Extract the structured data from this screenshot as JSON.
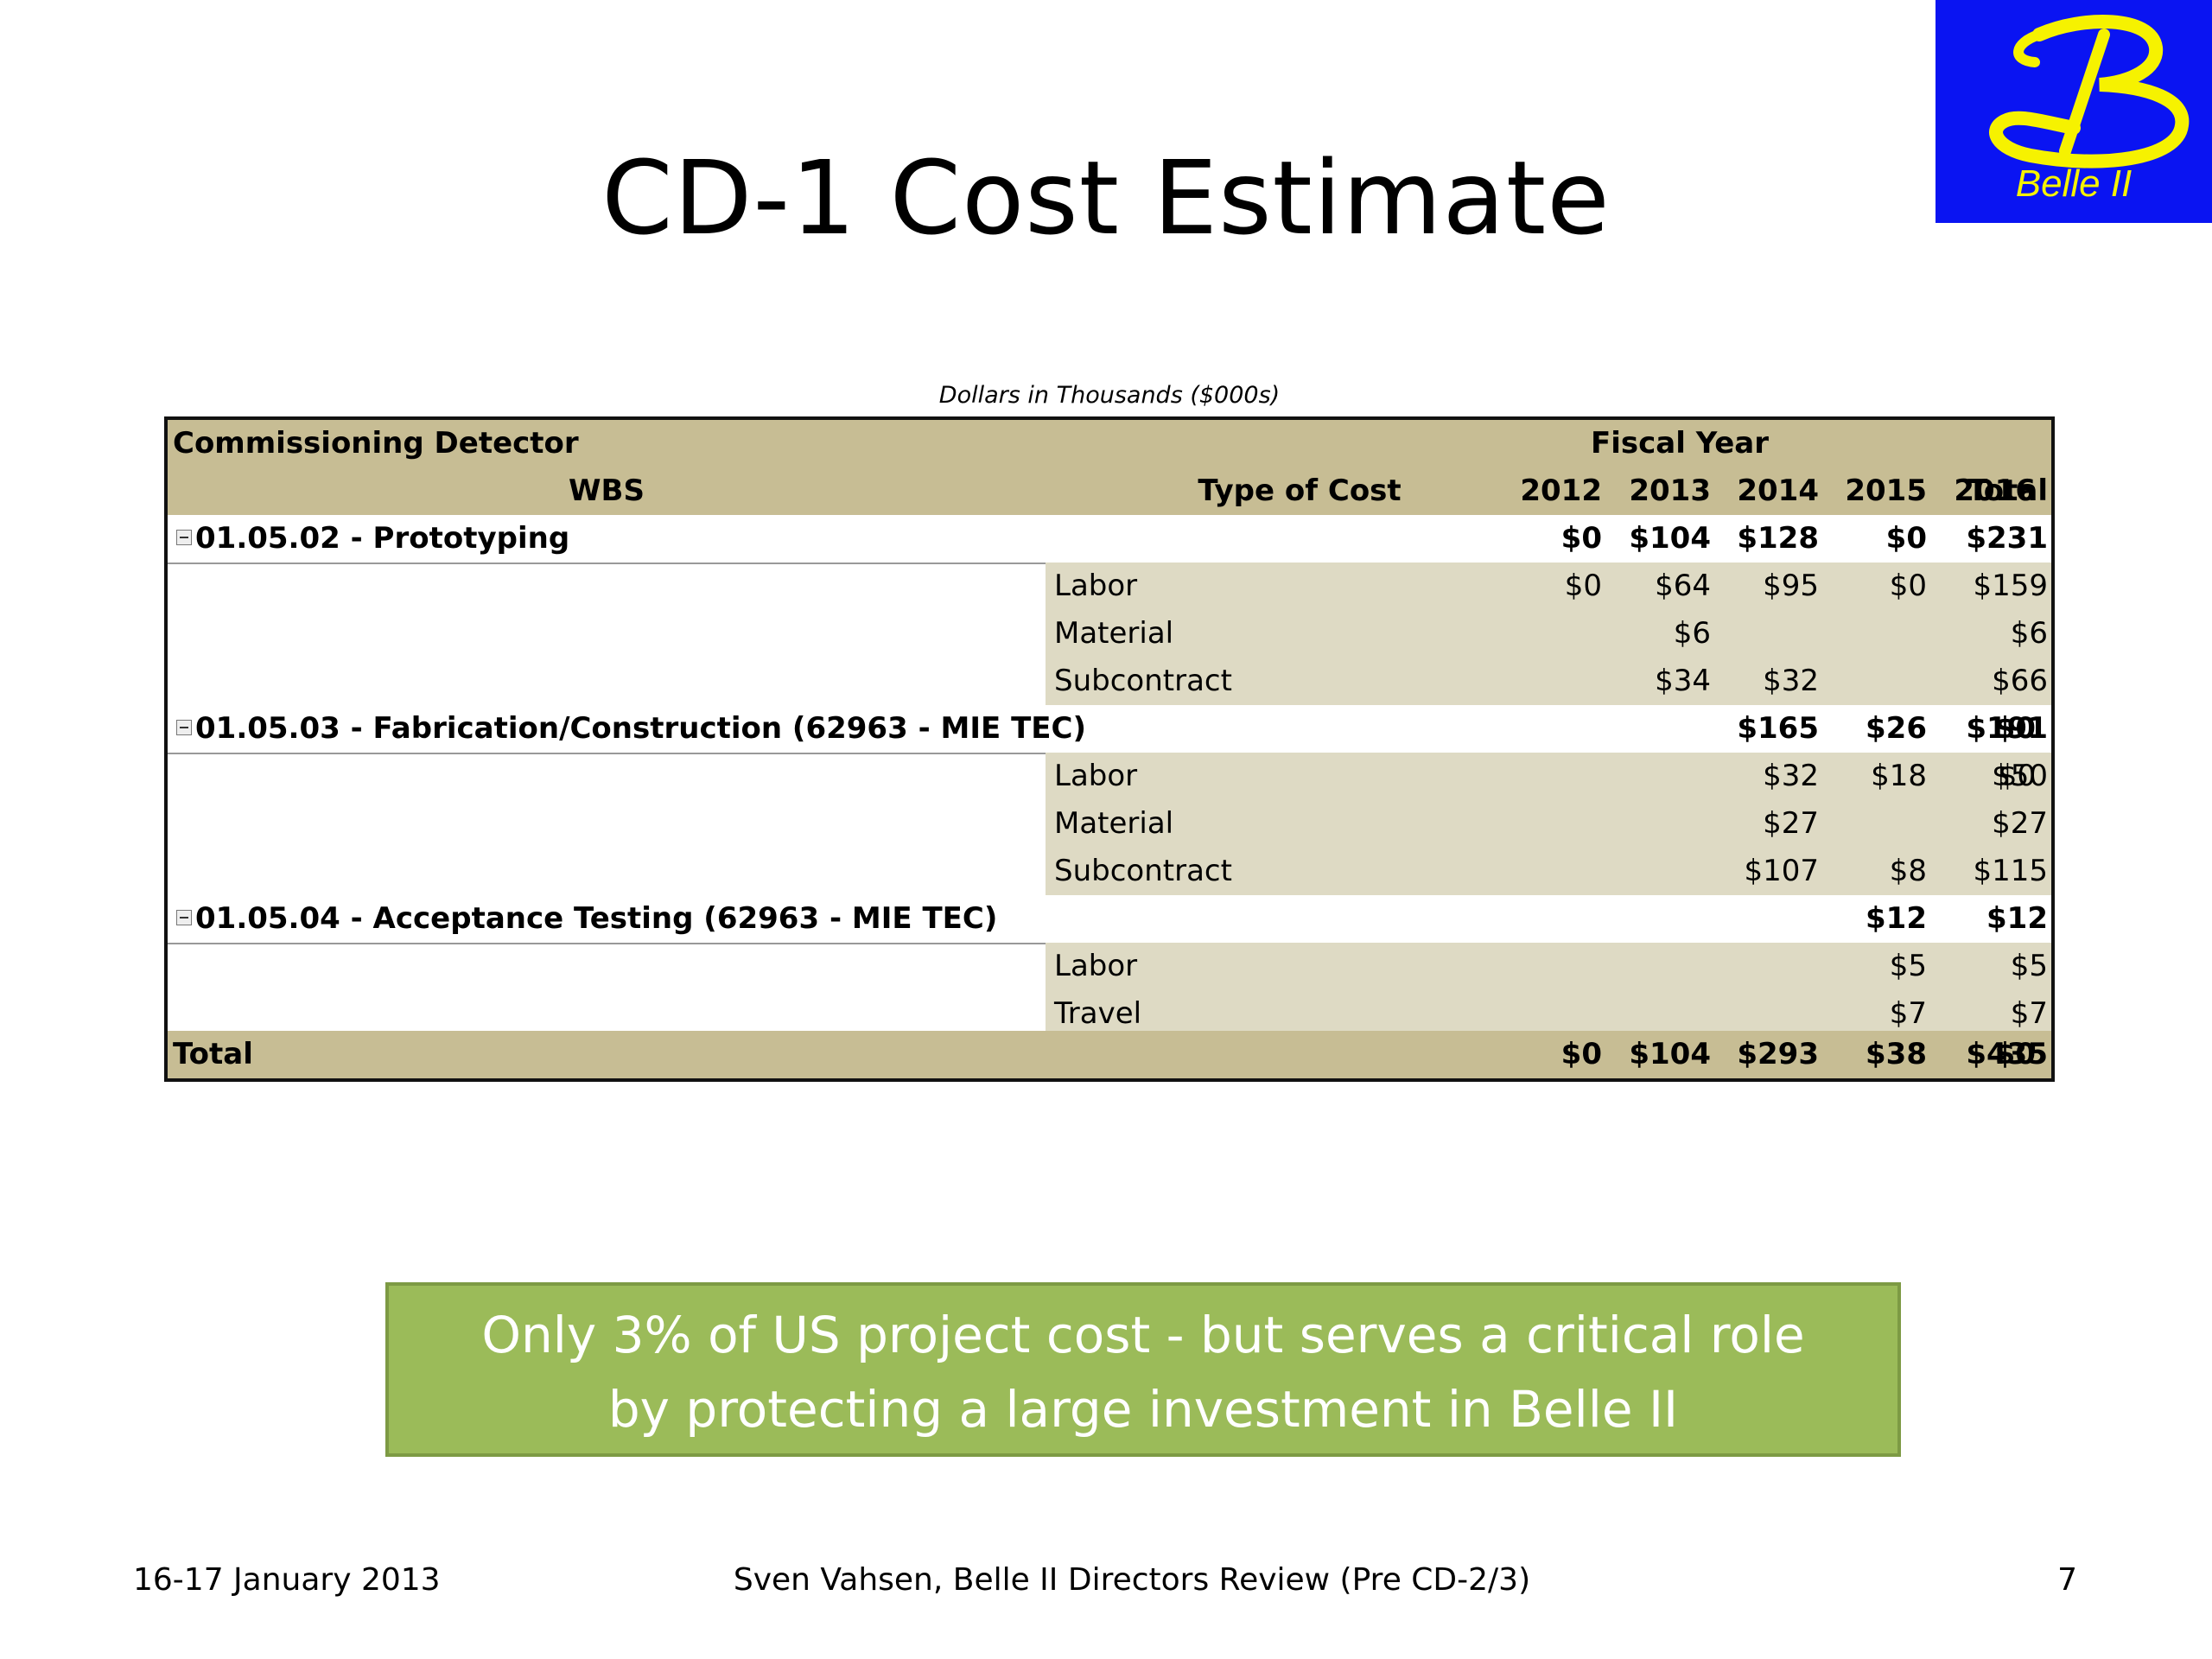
{
  "slide": {
    "title": "CD-1 Cost Estimate",
    "logo_text": "Belle II",
    "caption": "Dollars in Thousands ($000s)",
    "callout_line1": "Only 3% of US project cost - but serves a critical role",
    "callout_line2": "by protecting a large investment in Belle II",
    "footer_left": "16-17 January 2013",
    "footer_center": "Sven Vahsen, Belle II Directors Review (Pre CD-2/3)",
    "footer_right": "7"
  },
  "colors": {
    "header_bg": "#c7bd94",
    "detail_bg": "#dedac4",
    "callout_bg": "#9bbb59",
    "logo_bg": "#0a14f2",
    "logo_fg": "#f6f200"
  },
  "table": {
    "title": "Commissioning Detector",
    "group_header": "Fiscal Year",
    "col_wbs": "WBS",
    "col_type": "Type of Cost",
    "years": [
      "2012",
      "2013",
      "2014",
      "2015",
      "2016",
      "Total"
    ],
    "groups": [
      {
        "label": "01.05.02 - Prototyping",
        "values": [
          "$0",
          "$104",
          "$128",
          "$0",
          "",
          "$231"
        ],
        "rows": [
          {
            "type": "Labor",
            "values": [
              "$0",
              "$64",
              "$95",
              "$0",
              "",
              "$159"
            ]
          },
          {
            "type": "Material",
            "values": [
              "",
              "$6",
              "",
              "",
              "",
              "$6"
            ]
          },
          {
            "type": "Subcontract",
            "values": [
              "",
              "$34",
              "$32",
              "",
              "",
              "$66"
            ]
          }
        ]
      },
      {
        "label": "01.05.03 - Fabrication/Construction (62963 - MIE TEC)",
        "values": [
          "",
          "",
          "$165",
          "$26",
          "$0",
          "$191"
        ],
        "rows": [
          {
            "type": "Labor",
            "values": [
              "",
              "",
              "$32",
              "$18",
              "$0",
              "$50"
            ]
          },
          {
            "type": "Material",
            "values": [
              "",
              "",
              "$27",
              "",
              "",
              "$27"
            ]
          },
          {
            "type": "Subcontract",
            "values": [
              "",
              "",
              "$107",
              "$8",
              "",
              "$115"
            ]
          }
        ]
      },
      {
        "label": "01.05.04 - Acceptance Testing (62963 - MIE TEC)",
        "values": [
          "",
          "",
          "",
          "$12",
          "",
          "$12"
        ],
        "rows": [
          {
            "type": "Labor",
            "values": [
              "",
              "",
              "",
              "$5",
              "",
              "$5"
            ]
          },
          {
            "type": "Travel",
            "values": [
              "",
              "",
              "",
              "$7",
              "",
              "$7"
            ]
          }
        ]
      }
    ],
    "total": {
      "label": "Total",
      "values": [
        "$0",
        "$104",
        "$293",
        "$38",
        "$0",
        "$435"
      ]
    }
  }
}
